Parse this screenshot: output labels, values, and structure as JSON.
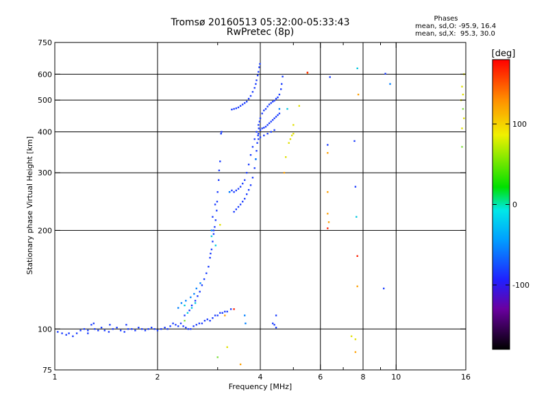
{
  "chart_data": {
    "type": "scatter",
    "title": "Tromsø 20160513 05:32:00-05:33:43",
    "subtitle": "RwPretec (8p)",
    "xlabel": "Frequency [MHz]",
    "ylabel": "Stationary phase Virtual Height [km]",
    "x_scale": "log",
    "y_scale": "log",
    "xlim": [
      1,
      16
    ],
    "ylim": [
      75,
      750
    ],
    "x_ticks": [
      1,
      2,
      4,
      6,
      8,
      10,
      16
    ],
    "x_tick_labels": [
      "1",
      "2",
      "4",
      "6",
      "8",
      "10",
      "16"
    ],
    "x_minor_ticks": [
      3,
      5,
      7,
      9
    ],
    "y_ticks": [
      75,
      100,
      200,
      300,
      400,
      500,
      600,
      750
    ],
    "y_tick_labels": [
      "75",
      "100",
      "200",
      "300",
      "400",
      "500",
      "600",
      "750"
    ],
    "grid": true,
    "grid_x": [
      2,
      4,
      6,
      8,
      10
    ],
    "grid_y": [
      100,
      200,
      300,
      400,
      500,
      600
    ],
    "legend": {
      "title": "Phases",
      "lines": [
        "mean, sd,O: -95.9, 16.4",
        "mean, sd,X:  95.3, 30.0"
      ],
      "placement": "top-right"
    },
    "colorbar": {
      "label": "[deg]",
      "ticks": [
        100,
        0,
        -100
      ],
      "tick_labels": [
        "100",
        "0",
        "-100"
      ],
      "range": [
        -180,
        180
      ],
      "placement": "right"
    },
    "series": [
      {
        "color_phase": -100,
        "color": "#1a3cff",
        "points": [
          [
            1.02,
            98
          ],
          [
            1.05,
            97
          ],
          [
            1.08,
            96
          ],
          [
            1.1,
            97
          ],
          [
            1.13,
            95
          ],
          [
            1.16,
            97
          ],
          [
            1.19,
            99
          ],
          [
            1.22,
            100
          ],
          [
            1.25,
            99
          ],
          [
            1.28,
            103
          ],
          [
            1.31,
            100
          ],
          [
            1.34,
            99
          ],
          [
            1.37,
            101
          ],
          [
            1.4,
            99
          ],
          [
            1.44,
            98
          ],
          [
            1.48,
            100
          ],
          [
            1.52,
            101
          ],
          [
            1.56,
            99
          ],
          [
            1.6,
            98
          ],
          [
            1.64,
            100
          ],
          [
            1.68,
            100
          ],
          [
            1.72,
            99
          ],
          [
            1.76,
            101
          ],
          [
            1.8,
            100
          ],
          [
            1.84,
            99
          ],
          [
            1.88,
            100
          ],
          [
            1.92,
            101
          ],
          [
            1.96,
            100
          ],
          [
            2.0,
            99
          ],
          [
            2.05,
            100
          ],
          [
            2.1,
            101
          ],
          [
            2.14,
            100
          ],
          [
            2.18,
            102
          ],
          [
            2.22,
            104
          ],
          [
            2.26,
            103
          ],
          [
            2.3,
            102
          ],
          [
            2.34,
            104
          ],
          [
            2.38,
            102
          ],
          [
            2.42,
            101
          ],
          [
            2.46,
            100
          ],
          [
            2.5,
            100
          ],
          [
            2.55,
            102
          ],
          [
            2.6,
            103
          ],
          [
            2.65,
            104
          ],
          [
            2.7,
            104
          ],
          [
            2.75,
            106
          ],
          [
            2.8,
            107
          ],
          [
            2.85,
            106
          ],
          [
            2.9,
            108
          ],
          [
            2.95,
            110
          ],
          [
            3.0,
            110
          ],
          [
            3.05,
            112
          ],
          [
            3.1,
            112
          ],
          [
            3.15,
            113
          ],
          [
            3.2,
            113
          ],
          [
            3.28,
            115
          ],
          [
            1.3,
            104
          ],
          [
            1.45,
            103
          ],
          [
            1.62,
            103
          ],
          [
            1.25,
            97
          ],
          [
            2.4,
            110
          ],
          [
            2.48,
            114
          ],
          [
            2.52,
            118
          ],
          [
            2.58,
            122
          ],
          [
            2.62,
            126
          ],
          [
            2.66,
            130
          ],
          [
            2.7,
            136
          ],
          [
            2.74,
            142
          ],
          [
            2.78,
            148
          ],
          [
            2.82,
            155
          ],
          [
            2.85,
            165
          ],
          [
            2.88,
            175
          ],
          [
            2.9,
            185
          ],
          [
            2.92,
            195
          ],
          [
            2.94,
            205
          ],
          [
            2.96,
            215
          ],
          [
            2.98,
            230
          ],
          [
            2.99,
            245
          ],
          [
            3.0,
            262
          ],
          [
            3.02,
            285
          ],
          [
            3.03,
            305
          ],
          [
            3.05,
            325
          ],
          [
            3.07,
            395
          ],
          [
            3.08,
            400
          ],
          [
            2.95,
            240
          ],
          [
            2.9,
            220
          ],
          [
            2.92,
            200
          ],
          [
            2.86,
            170
          ],
          [
            3.25,
            262
          ],
          [
            3.3,
            265
          ],
          [
            3.35,
            262
          ],
          [
            3.4,
            265
          ],
          [
            3.45,
            268
          ],
          [
            3.5,
            272
          ],
          [
            3.55,
            278
          ],
          [
            3.6,
            285
          ],
          [
            3.65,
            300
          ],
          [
            3.7,
            318
          ],
          [
            3.75,
            340
          ],
          [
            3.8,
            360
          ],
          [
            3.85,
            380
          ],
          [
            3.9,
            400
          ],
          [
            3.95,
            420
          ],
          [
            4.0,
            440
          ],
          [
            4.05,
            455
          ],
          [
            4.1,
            465
          ],
          [
            4.15,
            470
          ],
          [
            4.2,
            478
          ],
          [
            4.25,
            485
          ],
          [
            4.3,
            490
          ],
          [
            4.35,
            495
          ],
          [
            4.4,
            498
          ],
          [
            4.45,
            505
          ],
          [
            4.5,
            510
          ],
          [
            4.55,
            520
          ],
          [
            4.6,
            540
          ],
          [
            4.62,
            560
          ],
          [
            4.65,
            590
          ],
          [
            3.35,
            228
          ],
          [
            3.4,
            232
          ],
          [
            3.45,
            236
          ],
          [
            3.5,
            240
          ],
          [
            3.55,
            245
          ],
          [
            3.6,
            250
          ],
          [
            3.65,
            258
          ],
          [
            3.7,
            266
          ],
          [
            3.75,
            275
          ],
          [
            3.8,
            290
          ],
          [
            3.85,
            310
          ],
          [
            3.88,
            330
          ],
          [
            3.9,
            350
          ],
          [
            3.92,
            370
          ],
          [
            3.94,
            390
          ],
          [
            3.96,
            410
          ],
          [
            3.98,
            430
          ],
          [
            3.95,
            395
          ],
          [
            4.0,
            405
          ],
          [
            4.05,
            410
          ],
          [
            4.1,
            412
          ],
          [
            4.15,
            415
          ],
          [
            4.2,
            420
          ],
          [
            4.25,
            425
          ],
          [
            4.3,
            430
          ],
          [
            4.35,
            435
          ],
          [
            4.4,
            440
          ],
          [
            4.45,
            445
          ],
          [
            4.5,
            450
          ],
          [
            4.55,
            455
          ],
          [
            3.95,
            380
          ],
          [
            4.0,
            385
          ],
          [
            4.1,
            390
          ],
          [
            4.2,
            395
          ],
          [
            4.3,
            400
          ],
          [
            4.4,
            405
          ],
          [
            3.3,
            468
          ],
          [
            3.35,
            470
          ],
          [
            3.4,
            472
          ],
          [
            3.45,
            475
          ],
          [
            3.5,
            480
          ],
          [
            3.55,
            485
          ],
          [
            3.6,
            490
          ],
          [
            3.65,
            495
          ],
          [
            3.7,
            505
          ],
          [
            3.75,
            515
          ],
          [
            3.8,
            530
          ],
          [
            3.85,
            545
          ],
          [
            3.88,
            560
          ],
          [
            3.9,
            575
          ],
          [
            3.93,
            595
          ],
          [
            3.95,
            610
          ],
          [
            3.97,
            630
          ],
          [
            3.99,
            645
          ],
          [
            4.4,
            103
          ],
          [
            4.45,
            101
          ],
          [
            4.35,
            104
          ],
          [
            4.45,
            110
          ],
          [
            6.4,
            588
          ],
          [
            6.3,
            365
          ],
          [
            7.55,
            375
          ],
          [
            7.6,
            272
          ],
          [
            9.3,
            602
          ],
          [
            9.2,
            133
          ]
        ]
      },
      {
        "color_phase": -80,
        "color": "#0080ff",
        "points": [
          [
            2.3,
            116
          ],
          [
            2.35,
            120
          ],
          [
            2.42,
            122
          ],
          [
            2.5,
            125
          ],
          [
            2.56,
            128
          ],
          [
            2.6,
            133
          ],
          [
            2.67,
            138
          ],
          [
            3.6,
            110
          ],
          [
            3.62,
            104
          ],
          [
            2.88,
            200
          ],
          [
            3.25,
            262
          ],
          [
            3.88,
            330
          ],
          [
            4.55,
            470
          ],
          [
            9.6,
            560
          ]
        ]
      },
      {
        "color_phase": -40,
        "color": "#00c8e0",
        "points": [
          [
            2.45,
            112
          ],
          [
            2.52,
            116
          ],
          [
            2.58,
            120
          ],
          [
            2.4,
            118
          ],
          [
            2.88,
            192
          ],
          [
            2.96,
            180
          ],
          [
            7.7,
            625
          ],
          [
            7.65,
            220
          ],
          [
            4.8,
            470
          ]
        ]
      },
      {
        "color_phase": 40,
        "color": "#80e040",
        "points": [
          [
            3.0,
            82
          ],
          [
            2.4,
            106
          ],
          [
            15.6,
            360
          ],
          [
            15.7,
            470
          ]
        ]
      },
      {
        "color_phase": 100,
        "color": "#e0e000",
        "points": [
          [
            4.9,
            380
          ],
          [
            4.95,
            390
          ],
          [
            5.0,
            395
          ],
          [
            4.85,
            370
          ],
          [
            5.0,
            420
          ],
          [
            15.8,
            600
          ],
          [
            15.6,
            550
          ],
          [
            15.7,
            520
          ],
          [
            15.5,
            500
          ],
          [
            15.8,
            440
          ],
          [
            15.6,
            410
          ],
          [
            7.4,
            95
          ],
          [
            7.6,
            93
          ],
          [
            3.2,
            88
          ],
          [
            4.75,
            335
          ],
          [
            3.05,
            208
          ],
          [
            5.2,
            480
          ]
        ]
      },
      {
        "color_phase": 140,
        "color": "#ffa000",
        "points": [
          [
            3.5,
            78
          ],
          [
            3.15,
            110
          ],
          [
            6.3,
            345
          ],
          [
            6.3,
            225
          ],
          [
            6.35,
            212
          ],
          [
            6.3,
            262
          ],
          [
            7.75,
            520
          ],
          [
            7.7,
            135
          ],
          [
            7.6,
            85
          ],
          [
            4.7,
            300
          ],
          [
            5.5,
            605
          ]
        ]
      },
      {
        "color_phase": 170,
        "color": "#ff2000",
        "points": [
          [
            3.35,
            115
          ],
          [
            6.3,
            203
          ],
          [
            7.7,
            167
          ],
          [
            5.5,
            607
          ]
        ]
      }
    ]
  }
}
